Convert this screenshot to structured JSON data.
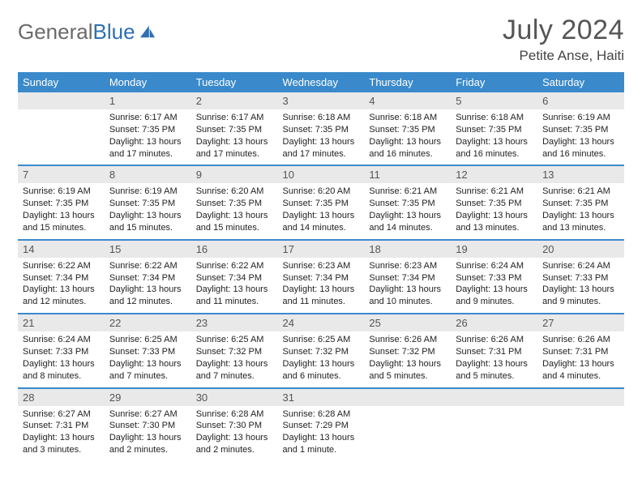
{
  "brand": {
    "part1": "General",
    "part2": "Blue",
    "logo_color": "#2f6fb3"
  },
  "title": {
    "month": "July 2024",
    "location": "Petite Anse, Haiti"
  },
  "colors": {
    "header_bg": "#3a8acb",
    "daynum_bg": "#e9e9e9",
    "rule": "#3a8acb"
  },
  "weekdays": [
    "Sunday",
    "Monday",
    "Tuesday",
    "Wednesday",
    "Thursday",
    "Friday",
    "Saturday"
  ],
  "weeks": [
    [
      {
        "n": "",
        "sr": "",
        "ss": "",
        "dl": ""
      },
      {
        "n": "1",
        "sr": "Sunrise: 6:17 AM",
        "ss": "Sunset: 7:35 PM",
        "dl": "Daylight: 13 hours and 17 minutes."
      },
      {
        "n": "2",
        "sr": "Sunrise: 6:17 AM",
        "ss": "Sunset: 7:35 PM",
        "dl": "Daylight: 13 hours and 17 minutes."
      },
      {
        "n": "3",
        "sr": "Sunrise: 6:18 AM",
        "ss": "Sunset: 7:35 PM",
        "dl": "Daylight: 13 hours and 17 minutes."
      },
      {
        "n": "4",
        "sr": "Sunrise: 6:18 AM",
        "ss": "Sunset: 7:35 PM",
        "dl": "Daylight: 13 hours and 16 minutes."
      },
      {
        "n": "5",
        "sr": "Sunrise: 6:18 AM",
        "ss": "Sunset: 7:35 PM",
        "dl": "Daylight: 13 hours and 16 minutes."
      },
      {
        "n": "6",
        "sr": "Sunrise: 6:19 AM",
        "ss": "Sunset: 7:35 PM",
        "dl": "Daylight: 13 hours and 16 minutes."
      }
    ],
    [
      {
        "n": "7",
        "sr": "Sunrise: 6:19 AM",
        "ss": "Sunset: 7:35 PM",
        "dl": "Daylight: 13 hours and 15 minutes."
      },
      {
        "n": "8",
        "sr": "Sunrise: 6:19 AM",
        "ss": "Sunset: 7:35 PM",
        "dl": "Daylight: 13 hours and 15 minutes."
      },
      {
        "n": "9",
        "sr": "Sunrise: 6:20 AM",
        "ss": "Sunset: 7:35 PM",
        "dl": "Daylight: 13 hours and 15 minutes."
      },
      {
        "n": "10",
        "sr": "Sunrise: 6:20 AM",
        "ss": "Sunset: 7:35 PM",
        "dl": "Daylight: 13 hours and 14 minutes."
      },
      {
        "n": "11",
        "sr": "Sunrise: 6:21 AM",
        "ss": "Sunset: 7:35 PM",
        "dl": "Daylight: 13 hours and 14 minutes."
      },
      {
        "n": "12",
        "sr": "Sunrise: 6:21 AM",
        "ss": "Sunset: 7:35 PM",
        "dl": "Daylight: 13 hours and 13 minutes."
      },
      {
        "n": "13",
        "sr": "Sunrise: 6:21 AM",
        "ss": "Sunset: 7:35 PM",
        "dl": "Daylight: 13 hours and 13 minutes."
      }
    ],
    [
      {
        "n": "14",
        "sr": "Sunrise: 6:22 AM",
        "ss": "Sunset: 7:34 PM",
        "dl": "Daylight: 13 hours and 12 minutes."
      },
      {
        "n": "15",
        "sr": "Sunrise: 6:22 AM",
        "ss": "Sunset: 7:34 PM",
        "dl": "Daylight: 13 hours and 12 minutes."
      },
      {
        "n": "16",
        "sr": "Sunrise: 6:22 AM",
        "ss": "Sunset: 7:34 PM",
        "dl": "Daylight: 13 hours and 11 minutes."
      },
      {
        "n": "17",
        "sr": "Sunrise: 6:23 AM",
        "ss": "Sunset: 7:34 PM",
        "dl": "Daylight: 13 hours and 11 minutes."
      },
      {
        "n": "18",
        "sr": "Sunrise: 6:23 AM",
        "ss": "Sunset: 7:34 PM",
        "dl": "Daylight: 13 hours and 10 minutes."
      },
      {
        "n": "19",
        "sr": "Sunrise: 6:24 AM",
        "ss": "Sunset: 7:33 PM",
        "dl": "Daylight: 13 hours and 9 minutes."
      },
      {
        "n": "20",
        "sr": "Sunrise: 6:24 AM",
        "ss": "Sunset: 7:33 PM",
        "dl": "Daylight: 13 hours and 9 minutes."
      }
    ],
    [
      {
        "n": "21",
        "sr": "Sunrise: 6:24 AM",
        "ss": "Sunset: 7:33 PM",
        "dl": "Daylight: 13 hours and 8 minutes."
      },
      {
        "n": "22",
        "sr": "Sunrise: 6:25 AM",
        "ss": "Sunset: 7:33 PM",
        "dl": "Daylight: 13 hours and 7 minutes."
      },
      {
        "n": "23",
        "sr": "Sunrise: 6:25 AM",
        "ss": "Sunset: 7:32 PM",
        "dl": "Daylight: 13 hours and 7 minutes."
      },
      {
        "n": "24",
        "sr": "Sunrise: 6:25 AM",
        "ss": "Sunset: 7:32 PM",
        "dl": "Daylight: 13 hours and 6 minutes."
      },
      {
        "n": "25",
        "sr": "Sunrise: 6:26 AM",
        "ss": "Sunset: 7:32 PM",
        "dl": "Daylight: 13 hours and 5 minutes."
      },
      {
        "n": "26",
        "sr": "Sunrise: 6:26 AM",
        "ss": "Sunset: 7:31 PM",
        "dl": "Daylight: 13 hours and 5 minutes."
      },
      {
        "n": "27",
        "sr": "Sunrise: 6:26 AM",
        "ss": "Sunset: 7:31 PM",
        "dl": "Daylight: 13 hours and 4 minutes."
      }
    ],
    [
      {
        "n": "28",
        "sr": "Sunrise: 6:27 AM",
        "ss": "Sunset: 7:31 PM",
        "dl": "Daylight: 13 hours and 3 minutes."
      },
      {
        "n": "29",
        "sr": "Sunrise: 6:27 AM",
        "ss": "Sunset: 7:30 PM",
        "dl": "Daylight: 13 hours and 2 minutes."
      },
      {
        "n": "30",
        "sr": "Sunrise: 6:28 AM",
        "ss": "Sunset: 7:30 PM",
        "dl": "Daylight: 13 hours and 2 minutes."
      },
      {
        "n": "31",
        "sr": "Sunrise: 6:28 AM",
        "ss": "Sunset: 7:29 PM",
        "dl": "Daylight: 13 hours and 1 minute."
      },
      {
        "n": "",
        "sr": "",
        "ss": "",
        "dl": ""
      },
      {
        "n": "",
        "sr": "",
        "ss": "",
        "dl": ""
      },
      {
        "n": "",
        "sr": "",
        "ss": "",
        "dl": ""
      }
    ]
  ]
}
